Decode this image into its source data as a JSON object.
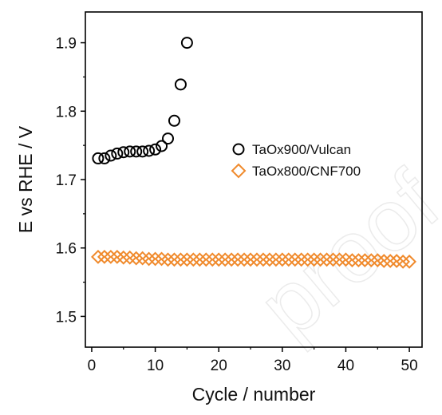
{
  "chart_data": {
    "type": "scatter",
    "xlabel": "Cycle / number",
    "ylabel": "E vs RHE / V",
    "xlim": [
      -1,
      52
    ],
    "ylim": [
      1.455,
      1.945
    ],
    "xticks": [
      "0",
      "10",
      "20",
      "30",
      "40",
      "50"
    ],
    "yticks": [
      "1.5",
      "1.6",
      "1.7",
      "1.8",
      "1.9"
    ],
    "grid": false,
    "legend_position": "upper-right",
    "watermark": "proof",
    "series": [
      {
        "name": "TaOx900/Vulcan",
        "marker": "circle",
        "color": "#000000",
        "x": [
          1,
          2,
          3,
          4,
          5,
          6,
          7,
          8,
          9,
          10,
          11,
          12,
          13,
          14,
          15
        ],
        "y": [
          1.731,
          1.731,
          1.735,
          1.738,
          1.74,
          1.741,
          1.741,
          1.741,
          1.742,
          1.744,
          1.749,
          1.76,
          1.786,
          1.839,
          1.9
        ]
      },
      {
        "name": "TaOx800/CNF700",
        "marker": "diamond",
        "color": "#f08a2c",
        "x": [
          1,
          2,
          3,
          4,
          5,
          6,
          7,
          8,
          9,
          10,
          11,
          12,
          13,
          14,
          15,
          16,
          17,
          18,
          19,
          20,
          21,
          22,
          23,
          24,
          25,
          26,
          27,
          28,
          29,
          30,
          31,
          32,
          33,
          34,
          35,
          36,
          37,
          38,
          39,
          40,
          41,
          42,
          43,
          44,
          45,
          46,
          47,
          48,
          49,
          50
        ],
        "y": [
          1.587,
          1.587,
          1.587,
          1.587,
          1.586,
          1.586,
          1.585,
          1.585,
          1.584,
          1.584,
          1.584,
          1.583,
          1.583,
          1.583,
          1.583,
          1.583,
          1.583,
          1.583,
          1.583,
          1.583,
          1.583,
          1.583,
          1.583,
          1.583,
          1.583,
          1.583,
          1.583,
          1.583,
          1.583,
          1.583,
          1.583,
          1.583,
          1.583,
          1.583,
          1.583,
          1.583,
          1.583,
          1.583,
          1.583,
          1.583,
          1.582,
          1.582,
          1.582,
          1.582,
          1.582,
          1.581,
          1.581,
          1.581,
          1.58,
          1.58
        ]
      }
    ]
  }
}
